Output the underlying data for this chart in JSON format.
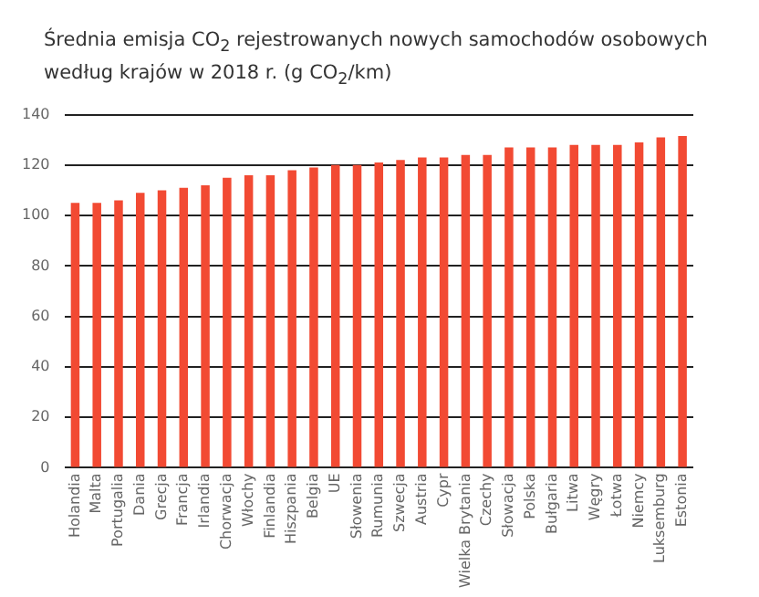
{
  "chart_data": {
    "type": "bar",
    "title": "Średnia emisja CO$_{2}$ rejestrowanych nowych samochodów osobowych według krajów w 2018 r. (g CO$_{2}$/km)",
    "categories": [
      "Holandia",
      "Malta",
      "Portugalia",
      "Dania",
      "Grecja",
      "Francja",
      "Irlandia",
      "Chorwacja",
      "Włochy",
      "Finlandia",
      "Hiszpania",
      "Belgia",
      "UE",
      "Słowenia",
      "Rumunia",
      "Szwecja",
      "Austria",
      "Cypr",
      "Wielka Brytania",
      "Czechy",
      "Słowacja",
      "Polska",
      "Bułgaria",
      "Litwa",
      "Węgry",
      "Łotwa",
      "Niemcy",
      "Luksemburg",
      "Estonia"
    ],
    "values": [
      105,
      105,
      106,
      109,
      110,
      111,
      112,
      115,
      116,
      116,
      118,
      119,
      120,
      120,
      121,
      122,
      123,
      123,
      124,
      124,
      127,
      127,
      127,
      128,
      128,
      128,
      129,
      131,
      131.5
    ],
    "color": "#f24a33",
    "ylim": [
      0,
      140
    ],
    "yticks": [
      0,
      20,
      40,
      60,
      80,
      100,
      120,
      140
    ],
    "grid": "y",
    "legend": false
  }
}
